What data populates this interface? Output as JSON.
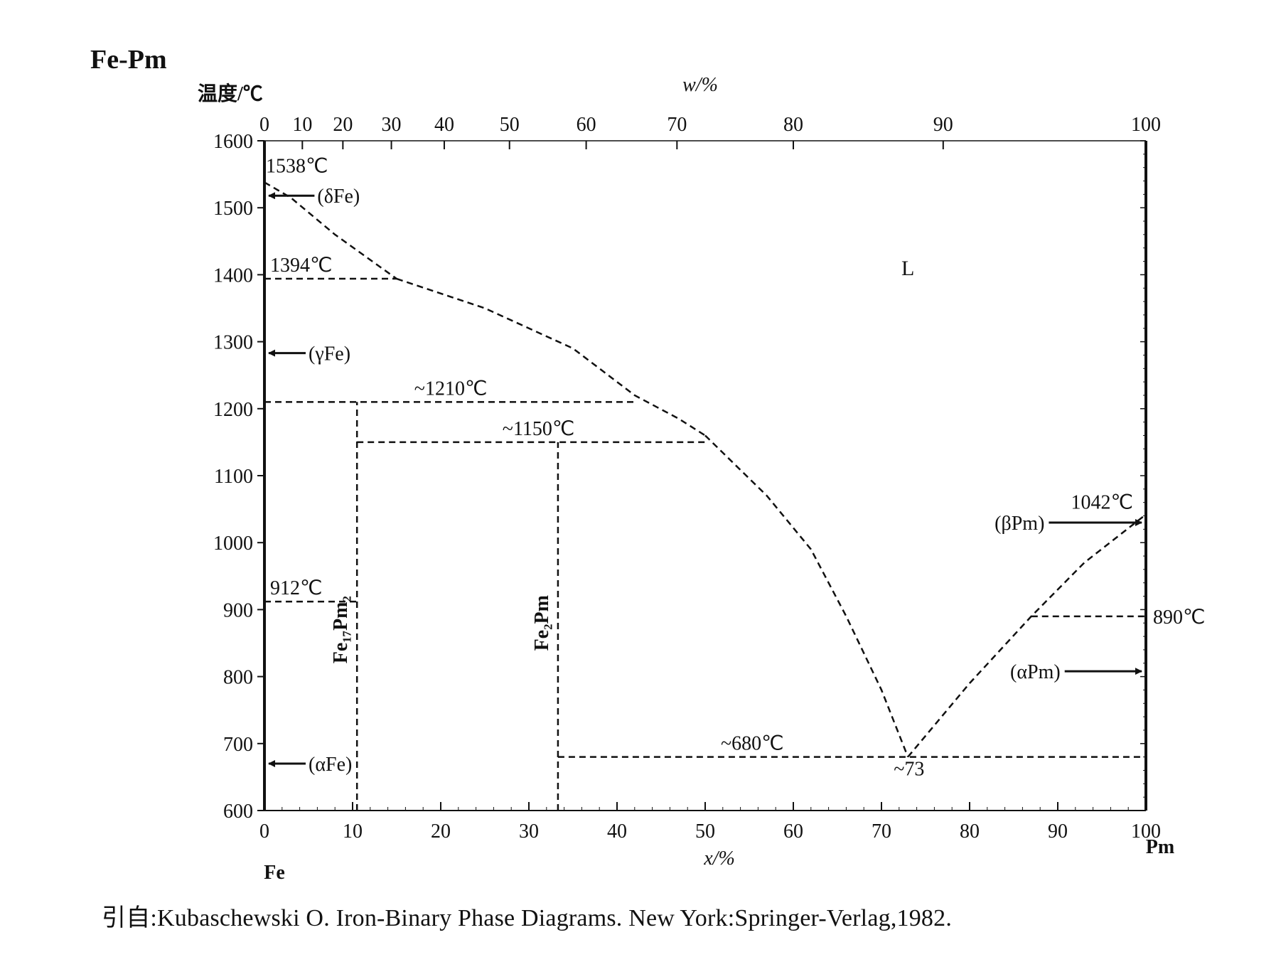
{
  "title": "Fe-Pm",
  "citation": "引自:Kubaschewski O.  Iron-Binary Phase Diagrams. New York:Springer-Verlag,1982.",
  "chart_data": {
    "type": "phase-diagram",
    "ylabel": "温度/℃",
    "xlabel": "x/%",
    "top_xlabel": "w/%",
    "ylim": [
      600,
      1600
    ],
    "xlim": [
      0,
      100
    ],
    "y_ticks": [
      1600,
      1500,
      1400,
      1300,
      1200,
      1100,
      1000,
      900,
      800,
      700,
      600
    ],
    "x_ticks": [
      0,
      10,
      20,
      30,
      40,
      50,
      60,
      70,
      80,
      90,
      100
    ],
    "top_ticks": [
      0,
      10,
      20,
      30,
      40,
      50,
      60,
      70,
      80,
      90,
      100
    ],
    "top_tick_positions_x": [
      0,
      4.3,
      8.9,
      14.4,
      20.4,
      27.8,
      36.5,
      46.8,
      60.0,
      77.0,
      100
    ],
    "left_element": "Fe",
    "right_element": "Pm",
    "phase_labels": [
      {
        "text": "L",
        "x": 73,
        "y": 1410
      },
      {
        "text": "(δFe)",
        "x": 6,
        "y": 1518,
        "arrow_to_x": 0
      },
      {
        "text": "(γFe)",
        "x": 5,
        "y": 1283,
        "arrow_to_x": 0
      },
      {
        "text": "(αFe)",
        "x": 5,
        "y": 670,
        "arrow_to_x": 0
      },
      {
        "text": "(βPm)",
        "x": 88.5,
        "y": 1030,
        "arrow_to_x": 100
      },
      {
        "text": "(αPm)",
        "x": 90.3,
        "y": 808,
        "arrow_to_x": 100
      }
    ],
    "temperature_labels": [
      {
        "text": "1538℃",
        "x": 0,
        "y": 1538
      },
      {
        "text": "1394℃",
        "x": 0,
        "y": 1394
      },
      {
        "text": "~1210℃",
        "x": 17,
        "y": 1210
      },
      {
        "text": "~1150℃",
        "x": 27,
        "y": 1150
      },
      {
        "text": "912℃",
        "x": 0,
        "y": 912
      },
      {
        "text": "1042℃",
        "x": 100,
        "y": 1042
      },
      {
        "text": "890℃",
        "x": 100,
        "y": 890
      },
      {
        "text": "~680℃",
        "x": 55,
        "y": 680
      },
      {
        "text": "~73",
        "x": 73,
        "y": 680
      }
    ],
    "compound_labels": [
      {
        "text": "Fe₁₇Pm₂",
        "x": 10.5,
        "y": 870
      },
      {
        "text": "Fe₂Pm",
        "x": 33.3,
        "y": 880
      }
    ],
    "liquidus": [
      {
        "x": [
          0,
          3,
          8,
          15
        ],
        "y": [
          1538,
          1515,
          1460,
          1394
        ]
      },
      {
        "x": [
          15,
          25,
          35,
          42,
          47,
          50
        ],
        "y": [
          1394,
          1350,
          1290,
          1220,
          1185,
          1160
        ]
      },
      {
        "x": [
          50,
          57,
          62,
          66,
          70,
          73
        ],
        "y": [
          1160,
          1070,
          990,
          890,
          780,
          680
        ]
      },
      {
        "x": [
          73,
          80,
          87,
          93,
          100
        ],
        "y": [
          680,
          790,
          890,
          970,
          1042
        ]
      }
    ],
    "horizontal_lines": [
      {
        "y": 1394,
        "x": [
          0,
          15
        ]
      },
      {
        "y": 1210,
        "x": [
          0,
          42
        ]
      },
      {
        "y": 1150,
        "x": [
          10.5,
          50
        ]
      },
      {
        "y": 912,
        "x": [
          0,
          10.5
        ]
      },
      {
        "y": 890,
        "x": [
          87,
          100
        ]
      },
      {
        "y": 680,
        "x": [
          33.3,
          100
        ]
      }
    ],
    "compound_lines": [
      {
        "x": 10.5,
        "y": [
          600,
          1210
        ]
      },
      {
        "x": 33.3,
        "y": [
          600,
          1150
        ]
      }
    ]
  }
}
